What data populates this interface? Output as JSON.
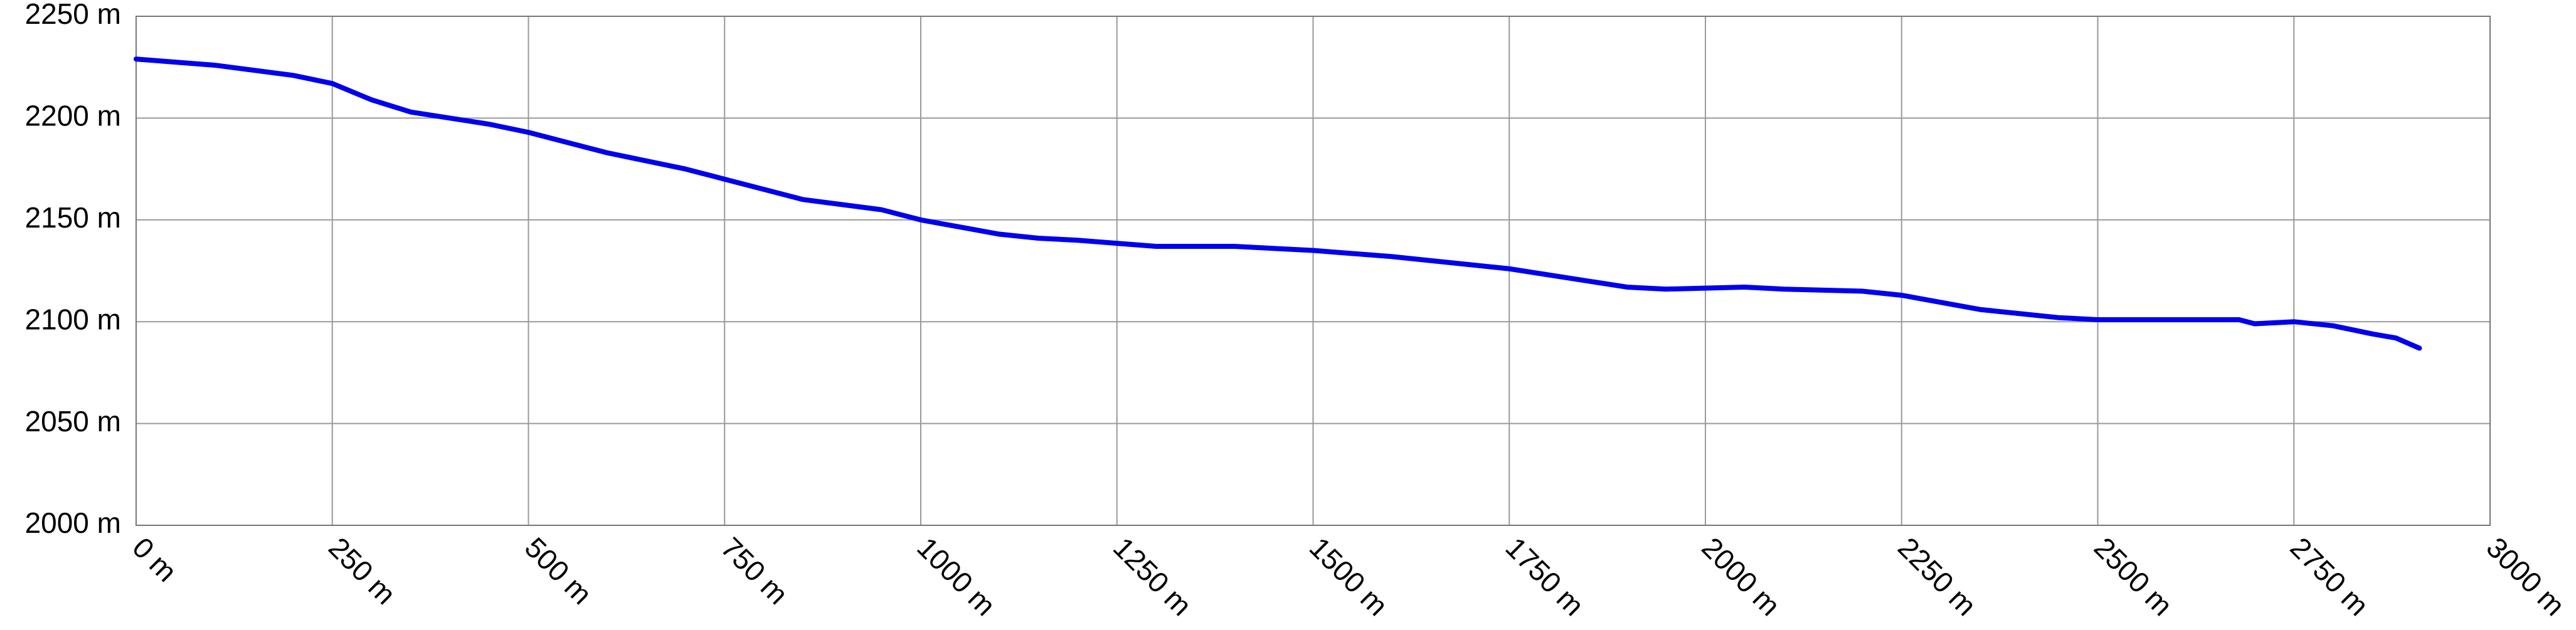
{
  "chart_data": {
    "type": "line",
    "x": [
      0,
      100,
      200,
      250,
      300,
      350,
      450,
      500,
      600,
      700,
      750,
      850,
      950,
      1000,
      1100,
      1150,
      1200,
      1300,
      1400,
      1500,
      1600,
      1750,
      1900,
      1950,
      2050,
      2100,
      2200,
      2250,
      2350,
      2450,
      2500,
      2600,
      2650,
      2680,
      2700,
      2750,
      2800,
      2850,
      2880,
      2910
    ],
    "series": [
      {
        "color": "#0000ee",
        "values": [
          2229,
          2226,
          2221,
          2217,
          2209,
          2203,
          2197,
          2193,
          2183,
          2175,
          2170,
          2160,
          2155,
          2150,
          2143,
          2141,
          2140,
          2137,
          2137,
          2135,
          2132,
          2126,
          2117,
          2116,
          2117,
          2116,
          2115,
          2113,
          2106,
          2102,
          2101,
          2101,
          2101,
          2101,
          2099,
          2100,
          2098,
          2094,
          2092,
          2087
        ]
      }
    ],
    "xlim": [
      0,
      3000
    ],
    "xticks": [
      {
        "value": 0,
        "label": "0 m"
      },
      {
        "value": 250,
        "label": "250 m"
      },
      {
        "value": 500,
        "label": "500 m"
      },
      {
        "value": 750,
        "label": "750 m"
      },
      {
        "value": 1000,
        "label": "1000 m"
      },
      {
        "value": 1250,
        "label": "1250 m"
      },
      {
        "value": 1500,
        "label": "1500 m"
      },
      {
        "value": 1750,
        "label": "1750 m"
      },
      {
        "value": 2000,
        "label": "2000 m"
      },
      {
        "value": 2250,
        "label": "2250 m"
      },
      {
        "value": 2500,
        "label": "2500 m"
      },
      {
        "value": 2750,
        "label": "2750 m"
      },
      {
        "value": 3000,
        "label": "3000 m"
      }
    ],
    "ylim": [
      2000,
      2250
    ],
    "yticks": [
      {
        "value": 2000,
        "label": "2000 m"
      },
      {
        "value": 2050,
        "label": "2050 m"
      },
      {
        "value": 2100,
        "label": "2100 m"
      },
      {
        "value": 2150,
        "label": "2150 m"
      },
      {
        "value": 2200,
        "label": "2200 m"
      },
      {
        "value": 2250,
        "label": "2250 m"
      }
    ],
    "grid": true
  }
}
